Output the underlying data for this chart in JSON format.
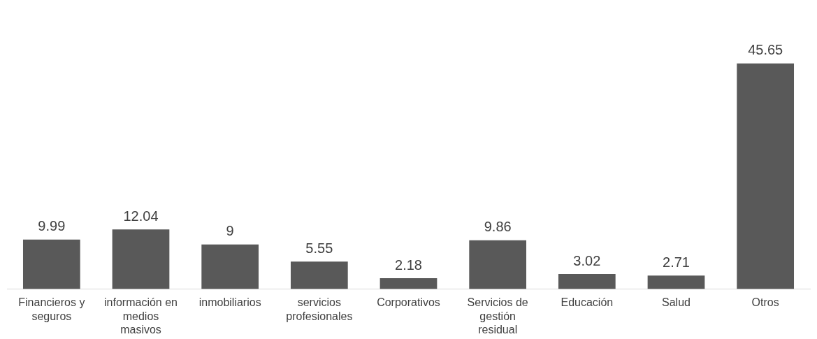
{
  "chart_data": {
    "type": "bar",
    "categories": [
      "Financieros y seguros",
      "información en medios masivos",
      "inmobiliarios",
      "servicios profesionales",
      "Corporativos",
      "Servicios de gestión residual",
      "Educación",
      "Salud",
      "Otros"
    ],
    "values": [
      9.99,
      12.04,
      9,
      5.55,
      2.18,
      9.86,
      3.02,
      2.71,
      45.65
    ],
    "color": "#595959",
    "data_labels": true,
    "grid": false,
    "legend": false
  }
}
